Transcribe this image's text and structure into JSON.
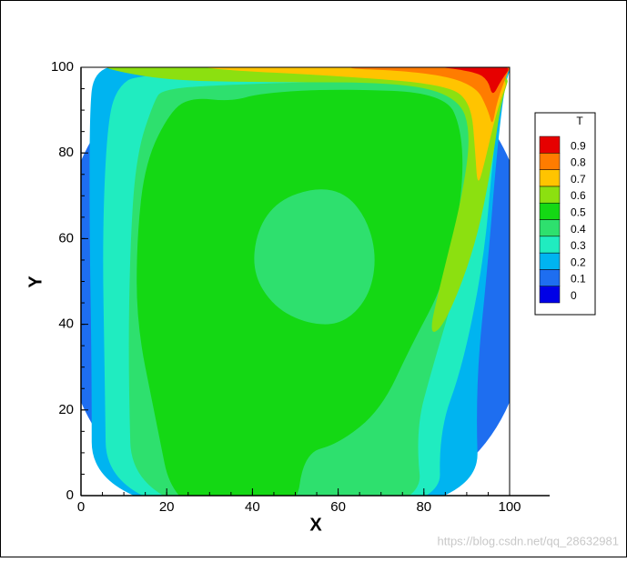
{
  "chart_data": {
    "type": "contour",
    "xlabel": "X",
    "ylabel": "Y",
    "xlim": [
      0,
      100
    ],
    "ylim": [
      0,
      100
    ],
    "xticks": [
      0,
      20,
      40,
      60,
      80,
      100
    ],
    "yticks": [
      0,
      20,
      40,
      60,
      80,
      100
    ],
    "legend_title": "T",
    "levels": [
      0,
      0.1,
      0.2,
      0.3,
      0.4,
      0.5,
      0.6,
      0.7,
      0.8,
      0.9
    ],
    "colors": [
      "#0000e6",
      "#1e6ef0",
      "#00b4f0",
      "#20ecc0",
      "#2ee06e",
      "#14d814",
      "#8ce010",
      "#ffc400",
      "#ff7c00",
      "#e60000"
    ],
    "legend": "right"
  },
  "watermark": "https://blog.csdn.net/qq_28632981"
}
